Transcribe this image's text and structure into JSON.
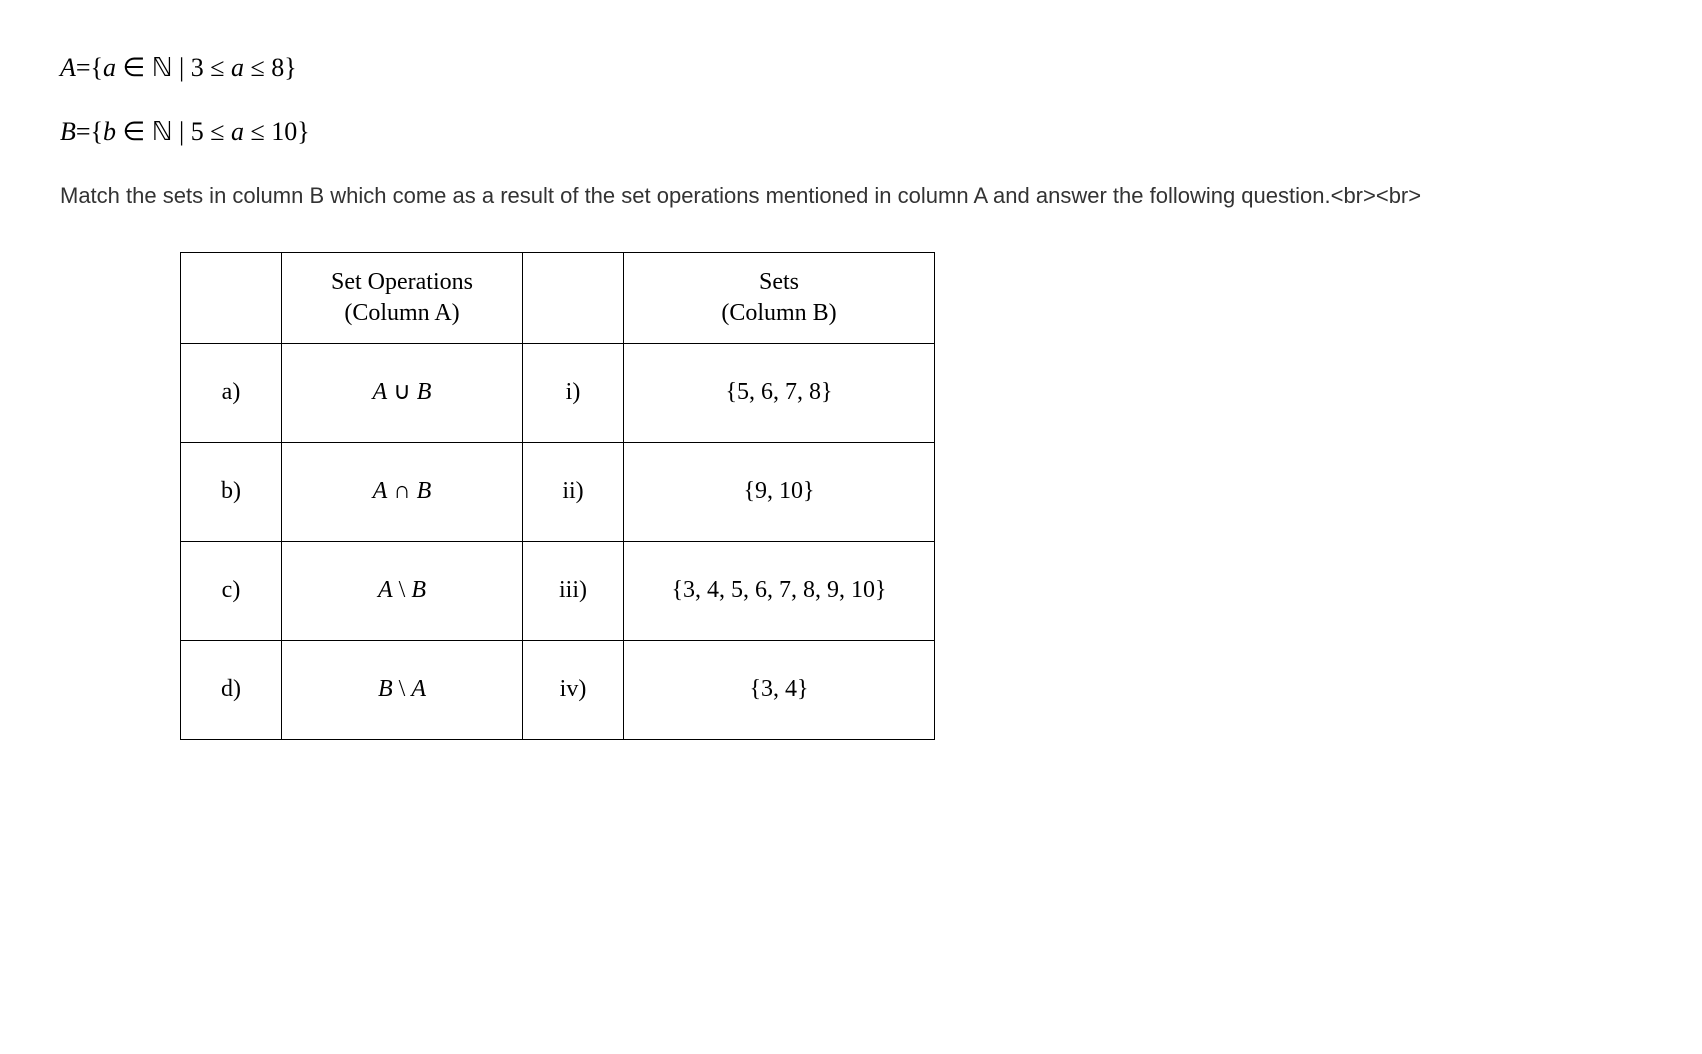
{
  "setA_definition": "A={a ∈ ℕ | 3 ≤ a ≤ 8}",
  "setB_definition": "B={b ∈ ℕ | 5 ≤ a ≤ 10}",
  "instruction_text": "Match the sets in column B which come as a result of the set operations mentioned in column A and answer the following question.<br><br>",
  "table": {
    "headers": {
      "colA_line1": "Set Operations",
      "colA_line2": "(Column A)",
      "colB_line1": "Sets",
      "colB_line2": "(Column B)"
    },
    "rows": [
      {
        "label": "a)",
        "operation": "A ∪ B",
        "roman": "i)",
        "set": "{5, 6, 7, 8}"
      },
      {
        "label": "b)",
        "operation": "A ∩ B",
        "roman": "ii)",
        "set": "{9, 10}"
      },
      {
        "label": "c)",
        "operation": "A \\ B",
        "roman": "iii)",
        "set": "{3, 4, 5, 6, 7, 8, 9, 10}"
      },
      {
        "label": "d)",
        "operation": "B \\ A",
        "roman": "iv)",
        "set": "{3, 4}"
      }
    ],
    "border_color": "#000000",
    "cell_font": "Times New Roman",
    "cell_fontsize": 24
  },
  "colors": {
    "background": "#ffffff",
    "text": "#222222",
    "instruction_text": "#333333"
  },
  "fonts": {
    "math": "Times New Roman",
    "body": "Arial"
  }
}
